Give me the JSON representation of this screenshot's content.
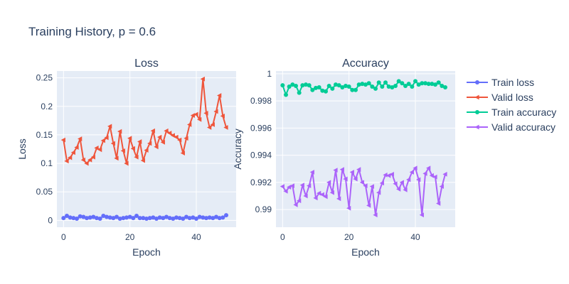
{
  "figure": {
    "title": "Training History, p = 0.6"
  },
  "colors": {
    "train_loss": "#636efa",
    "valid_loss": "#ef553b",
    "train_accuracy": "#00cc96",
    "valid_accuracy": "#ab63fa",
    "plot_bg": "#e5ecf6",
    "grid": "#ffffff"
  },
  "legend": {
    "placement": "right",
    "items": [
      {
        "label": "Train loss",
        "color": "#636efa",
        "marker": "circle"
      },
      {
        "label": "Valid loss",
        "color": "#ef553b",
        "marker": "triangle-left"
      },
      {
        "label": "Train accuracy",
        "color": "#00cc96",
        "marker": "circle"
      },
      {
        "label": "Valid accuracy",
        "color": "#ab63fa",
        "marker": "triangle-left"
      }
    ]
  },
  "chart_data": [
    {
      "type": "line",
      "title": "Loss",
      "xlabel": "Epoch",
      "ylabel": "Loss",
      "xlim": [
        -2,
        52
      ],
      "ylim": [
        -0.012,
        0.262
      ],
      "xticks": [
        0,
        20,
        40
      ],
      "xtick_labels": [
        "0",
        "20",
        "40"
      ],
      "yticks": [
        0,
        0.05,
        0.1,
        0.15,
        0.2,
        0.25
      ],
      "ytick_labels": [
        "0",
        "0.05",
        "0.1",
        "0.15",
        "0.2",
        "0.25"
      ],
      "grid": true,
      "x": [
        0,
        1,
        2,
        3,
        4,
        5,
        6,
        7,
        8,
        9,
        10,
        11,
        12,
        13,
        14,
        15,
        16,
        17,
        18,
        19,
        20,
        21,
        22,
        23,
        24,
        25,
        26,
        27,
        28,
        29,
        30,
        31,
        32,
        33,
        34,
        35,
        36,
        37,
        38,
        39,
        40,
        41,
        42,
        43,
        44,
        45,
        46,
        47,
        48,
        49
      ],
      "series": [
        {
          "name": "Train loss",
          "color": "#636efa",
          "marker": "circle",
          "values": [
            0.004,
            0.008,
            0.005,
            0.004,
            0.003,
            0.007,
            0.006,
            0.004,
            0.005,
            0.006,
            0.004,
            0.003,
            0.008,
            0.006,
            0.005,
            0.004,
            0.006,
            0.003,
            0.004,
            0.005,
            0.006,
            0.004,
            0.008,
            0.004,
            0.004,
            0.003,
            0.004,
            0.005,
            0.003,
            0.005,
            0.004,
            0.006,
            0.004,
            0.003,
            0.005,
            0.004,
            0.003,
            0.006,
            0.004,
            0.005,
            0.003,
            0.006,
            0.005,
            0.004,
            0.005,
            0.004,
            0.006,
            0.004,
            0.005,
            0.009
          ]
        },
        {
          "name": "Valid loss",
          "color": "#ef553b",
          "marker": "triangle-left",
          "values": [
            0.141,
            0.104,
            0.11,
            0.119,
            0.128,
            0.143,
            0.106,
            0.1,
            0.106,
            0.111,
            0.127,
            0.124,
            0.14,
            0.145,
            0.165,
            0.135,
            0.109,
            0.156,
            0.122,
            0.1,
            0.144,
            0.126,
            0.111,
            0.138,
            0.105,
            0.123,
            0.135,
            0.157,
            0.129,
            0.146,
            0.137,
            0.157,
            0.153,
            0.149,
            0.146,
            0.141,
            0.118,
            0.144,
            0.168,
            0.184,
            0.186,
            0.177,
            0.248,
            0.188,
            0.163,
            0.168,
            0.191,
            0.219,
            0.183,
            0.163
          ]
        }
      ]
    },
    {
      "type": "line",
      "title": "Accuracy",
      "xlabel": "Epoch",
      "ylabel": "Accuracy",
      "xlim": [
        -2,
        52
      ],
      "ylim": [
        0.9887,
        1.0002
      ],
      "xticks": [
        0,
        20,
        40
      ],
      "xtick_labels": [
        "0",
        "20",
        "40"
      ],
      "yticks": [
        0.99,
        0.992,
        0.994,
        0.996,
        0.998,
        1.0
      ],
      "ytick_labels": [
        "0.99",
        "0.992",
        "0.994",
        "0.996",
        "0.998",
        "1"
      ],
      "grid": true,
      "x": [
        0,
        1,
        2,
        3,
        4,
        5,
        6,
        7,
        8,
        9,
        10,
        11,
        12,
        13,
        14,
        15,
        16,
        17,
        18,
        19,
        20,
        21,
        22,
        23,
        24,
        25,
        26,
        27,
        28,
        29,
        30,
        31,
        32,
        33,
        34,
        35,
        36,
        37,
        38,
        39,
        40,
        41,
        42,
        43,
        44,
        45,
        46,
        47,
        48,
        49
      ],
      "series": [
        {
          "name": "Train accuracy",
          "color": "#00cc96",
          "marker": "circle",
          "values": [
            0.99915,
            0.99845,
            0.99905,
            0.9992,
            0.9991,
            0.9986,
            0.99915,
            0.9992,
            0.99915,
            0.9988,
            0.99895,
            0.999,
            0.99875,
            0.9987,
            0.9991,
            0.9989,
            0.9992,
            0.99915,
            0.999,
            0.9991,
            0.99905,
            0.9988,
            0.9988,
            0.9992,
            0.99925,
            0.9992,
            0.9993,
            0.99905,
            0.9989,
            0.99935,
            0.99905,
            0.99935,
            0.99905,
            0.999,
            0.9991,
            0.99945,
            0.9993,
            0.9991,
            0.99925,
            0.99905,
            0.99945,
            0.9992,
            0.9993,
            0.9993,
            0.99925,
            0.99925,
            0.9992,
            0.99935,
            0.9991,
            0.999
          ]
        },
        {
          "name": "Valid accuracy",
          "color": "#ab63fa",
          "marker": "triangle-left",
          "values": [
            0.9917,
            0.99135,
            0.99165,
            0.99175,
            0.99035,
            0.99065,
            0.9918,
            0.991,
            0.99175,
            0.99275,
            0.99085,
            0.9912,
            0.9911,
            0.99095,
            0.992,
            0.99125,
            0.9929,
            0.9908,
            0.99295,
            0.99225,
            0.9901,
            0.99275,
            0.99225,
            0.99295,
            0.992,
            0.99175,
            0.9903,
            0.9917,
            0.9896,
            0.99125,
            0.99195,
            0.99255,
            0.9925,
            0.9926,
            0.9919,
            0.9915,
            0.992,
            0.99145,
            0.9922,
            0.99275,
            0.99305,
            0.9922,
            0.9896,
            0.99265,
            0.99305,
            0.9925,
            0.9924,
            0.99045,
            0.9917,
            0.9926
          ]
        }
      ]
    }
  ]
}
